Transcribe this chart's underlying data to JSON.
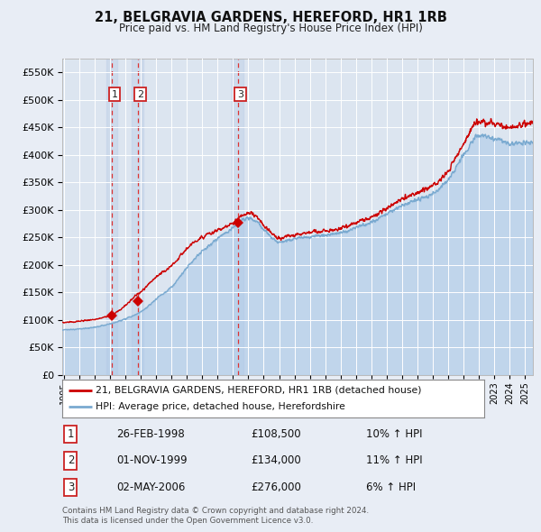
{
  "title": "21, BELGRAVIA GARDENS, HEREFORD, HR1 1RB",
  "subtitle": "Price paid vs. HM Land Registry's House Price Index (HPI)",
  "legend_line1": "21, BELGRAVIA GARDENS, HEREFORD, HR1 1RB (detached house)",
  "legend_line2": "HPI: Average price, detached house, Herefordshire",
  "transactions": [
    {
      "num": 1,
      "date": "26-FEB-1998",
      "price": 108500,
      "hpi_pct": "10%",
      "year": 1998.15
    },
    {
      "num": 2,
      "date": "01-NOV-1999",
      "price": 134000,
      "hpi_pct": "11%",
      "year": 1999.83
    },
    {
      "num": 3,
      "date": "02-MAY-2006",
      "price": 276000,
      "hpi_pct": "6%",
      "year": 2006.33
    }
  ],
  "footer": "Contains HM Land Registry data © Crown copyright and database right 2024.\nThis data is licensed under the Open Government Licence v3.0.",
  "ylim": [
    0,
    575000
  ],
  "xlim_start": 1994.9,
  "xlim_end": 2025.5,
  "bg_color": "#e8edf5",
  "plot_bg_color": "#dce5f0",
  "red_color": "#cc0000",
  "blue_color": "#7aaad0",
  "blue_fill_color": "#aac8e8",
  "grid_color": "#ffffff",
  "dashed_color": "#dd3333",
  "label_box_color": "#cc2222"
}
